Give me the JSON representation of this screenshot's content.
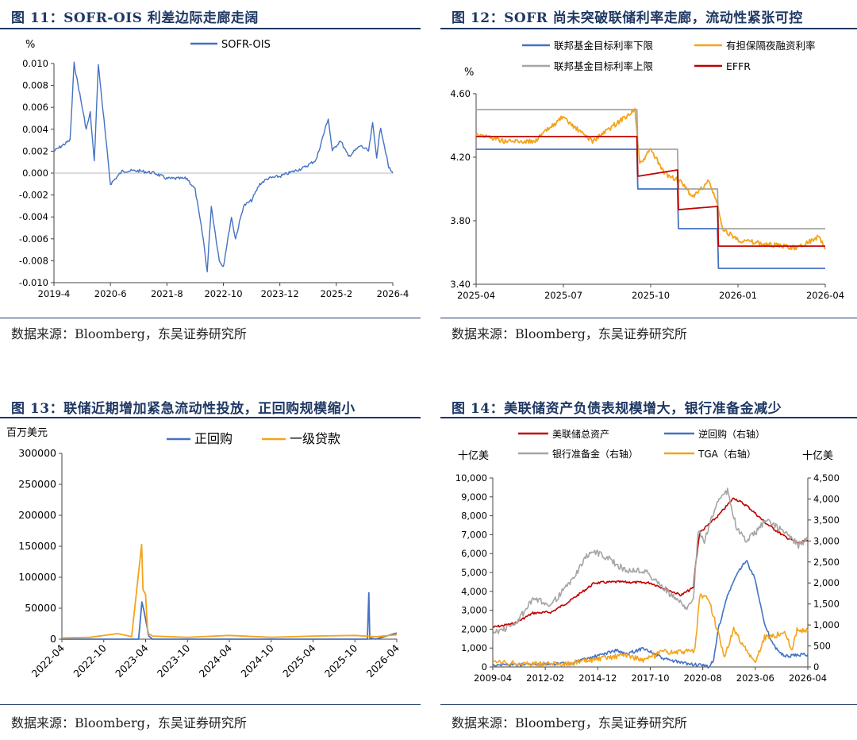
{
  "source_label": "数据来源：Bloomberg，东吴证券研究所",
  "charts": [
    {
      "title": "图 11：SOFR-OIS 利差边际走廊走阔",
      "unit": "%",
      "chart_data": {
        "type": "line",
        "title": "图 11：SOFR-OIS 利差边际走廊走阔",
        "ylabel": "%",
        "xlabel": "",
        "ylim": [
          -0.01,
          0.01
        ],
        "y_ticks": [
          "0.010",
          "0.008",
          "0.006",
          "0.004",
          "0.002",
          "0.000",
          "-0.002",
          "-0.004",
          "-0.006",
          "-0.008",
          "-0.010"
        ],
        "x_ticks": [
          "2019-4",
          "2020-6",
          "2021-8",
          "2022-10",
          "2023-12",
          "2025-2",
          "2026-4"
        ],
        "legend": "top-center",
        "series": [
          {
            "name": "SOFR-OIS",
            "color": "#4472c4",
            "x": [
              "2019-04",
              "2019-08",
              "2019-09",
              "2019-12",
              "2020-01",
              "2020-02",
              "2020-03",
              "2020-06",
              "2020-09",
              "2021-01",
              "2021-05",
              "2021-08",
              "2022-01",
              "2022-03",
              "2022-05",
              "2022-06",
              "2022-07",
              "2022-09",
              "2022-10",
              "2022-12",
              "2023-01",
              "2023-03",
              "2023-05",
              "2023-07",
              "2023-09",
              "2023-12",
              "2024-03",
              "2024-06",
              "2024-09",
              "2024-12",
              "2025-01",
              "2025-03",
              "2025-05",
              "2025-08",
              "2025-10",
              "2025-11",
              "2025-12",
              "2026-01",
              "2026-03",
              "2026-04"
            ],
            "values": [
              0.002,
              0.003,
              0.01,
              0.004,
              0.0055,
              0.001,
              0.0099,
              -0.001,
              0.0002,
              0.0002,
              0.0,
              -0.0005,
              -0.0005,
              -0.0015,
              -0.006,
              -0.009,
              -0.003,
              -0.008,
              -0.0085,
              -0.004,
              -0.006,
              -0.003,
              -0.0025,
              -0.001,
              -0.0005,
              -0.0003,
              0.0001,
              0.0005,
              0.0012,
              0.005,
              0.002,
              0.003,
              0.0015,
              0.0025,
              0.002,
              0.0045,
              0.0015,
              0.0042,
              0.0005,
              0.0
            ]
          }
        ]
      }
    },
    {
      "title": "图 12：SOFR 尚未突破联储利率走廊，流动性紧张可控",
      "unit": "%",
      "chart_data": {
        "type": "line",
        "title": "图 12：SOFR 尚未突破联储利率走廊，流动性紧张可控",
        "ylabel": "%",
        "xlabel": "",
        "ylim": [
          3.4,
          4.6
        ],
        "y_ticks": [
          "4.60",
          "4.20",
          "3.80",
          "3.40"
        ],
        "x_ticks": [
          "2025-04",
          "2025-07",
          "2025-10",
          "2026-01",
          "2026-04"
        ],
        "legend": "top",
        "series": [
          {
            "name": "联邦基金目标利率下限",
            "color": "#4472c4",
            "x": [
              "2025-04",
              "2025-09-17",
              "2025-09-18",
              "2025-10-29",
              "2025-10-30",
              "2025-12-10",
              "2025-12-11",
              "2026-04"
            ],
            "values": [
              4.25,
              4.25,
              4.0,
              4.0,
              3.75,
              3.75,
              3.5,
              3.5
            ]
          },
          {
            "name": "有担保隔夜融资利率",
            "color": "#f5a31a",
            "x": [
              "2025-04",
              "2025-05",
              "2025-06",
              "2025-06-30",
              "2025-08",
              "2025-09-15",
              "2025-09-20",
              "2025-10-01",
              "2025-10-15",
              "2025-10-31",
              "2025-11-15",
              "2025-12-01",
              "2025-12-10",
              "2025-12-15",
              "2026-01",
              "2026-02",
              "2026-03",
              "2026-03-25",
              "2026-04"
            ],
            "values": [
              4.35,
              4.3,
              4.3,
              4.45,
              4.3,
              4.5,
              4.15,
              4.25,
              4.1,
              4.05,
              3.95,
              4.05,
              3.9,
              3.75,
              3.68,
              3.65,
              3.63,
              3.7,
              3.62
            ]
          },
          {
            "name": "联邦基金目标利率上限",
            "color": "#a5a5a5",
            "x": [
              "2025-04",
              "2025-09-17",
              "2025-09-18",
              "2025-10-29",
              "2025-10-30",
              "2025-12-10",
              "2025-12-11",
              "2026-04"
            ],
            "values": [
              4.5,
              4.5,
              4.25,
              4.25,
              4.0,
              4.0,
              3.75,
              3.75
            ]
          },
          {
            "name": "EFFR",
            "color": "#c00000",
            "x": [
              "2025-04",
              "2025-09-17",
              "2025-09-18",
              "2025-10-29",
              "2025-10-30",
              "2025-12-10",
              "2025-12-11",
              "2026-04"
            ],
            "values": [
              4.33,
              4.33,
              4.08,
              4.12,
              3.87,
              3.89,
              3.64,
              3.64
            ]
          }
        ]
      }
    },
    {
      "title": "图 13：联储近期增加紧急流动性投放，正回购规模缩小",
      "unit": "百万美元",
      "chart_data": {
        "type": "line",
        "title": "图 13：联储近期增加紧急流动性投放，正回购规模缩小",
        "ylabel": "百万美元",
        "xlabel": "",
        "ylim": [
          0,
          300000
        ],
        "y_ticks": [
          "300000",
          "250000",
          "200000",
          "150000",
          "100000",
          "50000",
          "0"
        ],
        "x_ticks": [
          "2022-04",
          "2022-10",
          "2023-04",
          "2023-10",
          "2024-04",
          "2024-10",
          "2025-04",
          "2025-10",
          "2026-04"
        ],
        "legend": "top-right",
        "series": [
          {
            "name": "正回购",
            "color": "#4472c4",
            "x": [
              "2022-04",
              "2023-03-01",
              "2023-03-15",
              "2023-03-25",
              "2023-04-15",
              "2023-05-01",
              "2024-01",
              "2025-08",
              "2025-11-25",
              "2025-12-01",
              "2025-12-05",
              "2026-01",
              "2026-04"
            ],
            "values": [
              0,
              0,
              60000,
              45000,
              5000,
              0,
              0,
              0,
              0,
              75000,
              2000,
              0,
              10000
            ]
          },
          {
            "name": "一级贷款",
            "color": "#f5a31a",
            "x": [
              "2022-04",
              "2022-08",
              "2022-12",
              "2023-02",
              "2023-03-14",
              "2023-03-20",
              "2023-04-01",
              "2023-04-10",
              "2023-05-01",
              "2023-10",
              "2024-04",
              "2024-10",
              "2025-04",
              "2025-10",
              "2026-01",
              "2026-04"
            ],
            "values": [
              2000,
              3000,
              9000,
              4000,
              153000,
              80000,
              72000,
              10000,
              5000,
              3000,
              6000,
              3000,
              5000,
              6000,
              4000,
              7000
            ]
          }
        ]
      }
    },
    {
      "title": "图 14：美联储资产负债表规模增大，银行准备金减少",
      "unit_left": "十亿美",
      "unit_right": "十亿美",
      "chart_data": {
        "type": "line",
        "title": "图 14：美联储资产负债表规模增大，银行准备金减少",
        "ylabel": "十亿美",
        "y2label": "十亿美",
        "xlabel": "",
        "ylim": [
          0,
          10000
        ],
        "y2lim": [
          0,
          4500
        ],
        "y_ticks": [
          "10,000",
          "9,000",
          "8,000",
          "7,000",
          "6,000",
          "5,000",
          "4,000",
          "3,000",
          "2,000",
          "1,000",
          "0"
        ],
        "y2_ticks": [
          "4,500",
          "4,000",
          "3,500",
          "3,000",
          "2,500",
          "2,000",
          "1,500",
          "1,000",
          "500",
          "0"
        ],
        "x_ticks": [
          "2009-04",
          "2012-02",
          "2014-12",
          "2017-10",
          "2020-08",
          "2023-06",
          "2026-04"
        ],
        "legend": "top",
        "series": [
          {
            "name": "美联储总资产",
            "axis": "left",
            "color": "#c00000",
            "x": [
              "2009-04",
              "2010-06",
              "2011-06",
              "2012-06",
              "2013-06",
              "2014-10",
              "2016-01",
              "2017-10",
              "2019-06",
              "2020-02",
              "2020-03",
              "2020-06",
              "2021-06",
              "2022-04",
              "2023-01",
              "2024-01",
              "2025-01",
              "2025-10",
              "2026-04"
            ],
            "values": [
              2100,
              2300,
              2850,
              2900,
              3500,
              4450,
              4500,
              4450,
              3800,
              4200,
              5200,
              7100,
              8000,
              8950,
              8500,
              7600,
              6900,
              6550,
              6700
            ]
          },
          {
            "name": "逆回购（右轴）",
            "axis": "right",
            "color": "#4472c4",
            "x": [
              "2009-04",
              "2013-06",
              "2014-06",
              "2015-12",
              "2016-06",
              "2017-06",
              "2018-06",
              "2019-06",
              "2020-12",
              "2021-03",
              "2021-06",
              "2021-12",
              "2022-06",
              "2022-12",
              "2023-03",
              "2023-06",
              "2023-12",
              "2024-06",
              "2025-01",
              "2026-04"
            ],
            "values": [
              50,
              80,
              200,
              400,
              300,
              450,
              200,
              100,
              10,
              150,
              900,
              1700,
              2200,
              2550,
              2300,
              2100,
              1000,
              500,
              250,
              300
            ]
          },
          {
            "name": "银行准备金（右轴）",
            "axis": "right",
            "color": "#a5a5a5",
            "x": [
              "2009-04",
              "2010-06",
              "2011-06",
              "2012-06",
              "2013-06",
              "2014-06",
              "2014-10",
              "2015-06",
              "2016-06",
              "2017-06",
              "2018-06",
              "2019-06",
              "2019-09",
              "2020-02",
              "2020-05",
              "2020-09",
              "2021-06",
              "2021-12",
              "2022-06",
              "2022-12",
              "2023-06",
              "2024-01",
              "2025-01",
              "2025-10",
              "2026-04"
            ],
            "values": [
              800,
              1000,
              1600,
              1500,
              2000,
              2700,
              2750,
              2600,
              2300,
              2300,
              1900,
              1500,
              1400,
              1700,
              3200,
              3000,
              4000,
              4200,
              3300,
              3000,
              3200,
              3500,
              3200,
              2900,
              3050
            ]
          },
          {
            "name": "TGA（右轴）",
            "axis": "right",
            "color": "#f5a31a",
            "x": [
              "2009-04",
              "2011-06",
              "2013-06",
              "2015-12",
              "2016-06",
              "2017-06",
              "2018-06",
              "2019-06",
              "2020-03",
              "2020-06",
              "2020-12",
              "2021-06",
              "2021-10",
              "2022-04",
              "2022-12",
              "2023-06",
              "2023-12",
              "2024-06",
              "2025-01",
              "2025-06",
              "2025-09",
              "2026-04"
            ],
            "values": [
              100,
              80,
              80,
              250,
              300,
              150,
              350,
              350,
              400,
              1700,
              1600,
              800,
              200,
              900,
              400,
              100,
              700,
              750,
              800,
              400,
              900,
              850
            ]
          }
        ]
      }
    }
  ]
}
